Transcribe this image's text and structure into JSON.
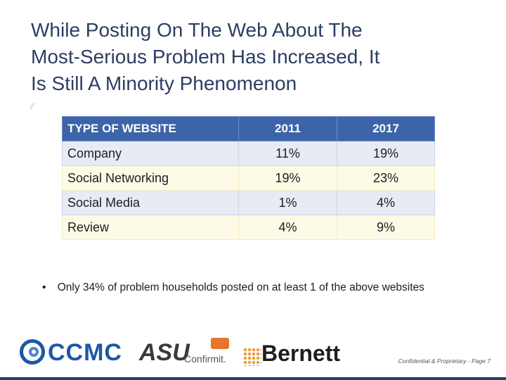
{
  "slide": {
    "title_lines": [
      "While Posting On The Web About The",
      "Most-Serious Problem Has Increased, It",
      "Is Still A Minority Phenomenon"
    ]
  },
  "table": {
    "headers": [
      "TYPE OF WEBSITE",
      "2011",
      "2017"
    ],
    "rows": [
      [
        "Company",
        "11%",
        "19%"
      ],
      [
        "Social Networking",
        "19%",
        "23%"
      ],
      [
        "Social Media",
        "1%",
        "4%"
      ],
      [
        "Review",
        "4%",
        "9%"
      ]
    ]
  },
  "bullet": {
    "marker": "•",
    "text": "Only 34% of problem households posted on at least 1 of the above websites"
  },
  "logos": {
    "ccmc": "CCMC",
    "asu": "ASU",
    "confirmit": "Confirmit.",
    "bernett": "Bernett"
  },
  "footer": {
    "note": "Confidential & Proprietary - Page 7"
  },
  "colors": {
    "title": "#2d3d63",
    "header_bg": "#3d64a8",
    "row_odd": "#e6ebf4",
    "row_even": "#fdfae6"
  }
}
